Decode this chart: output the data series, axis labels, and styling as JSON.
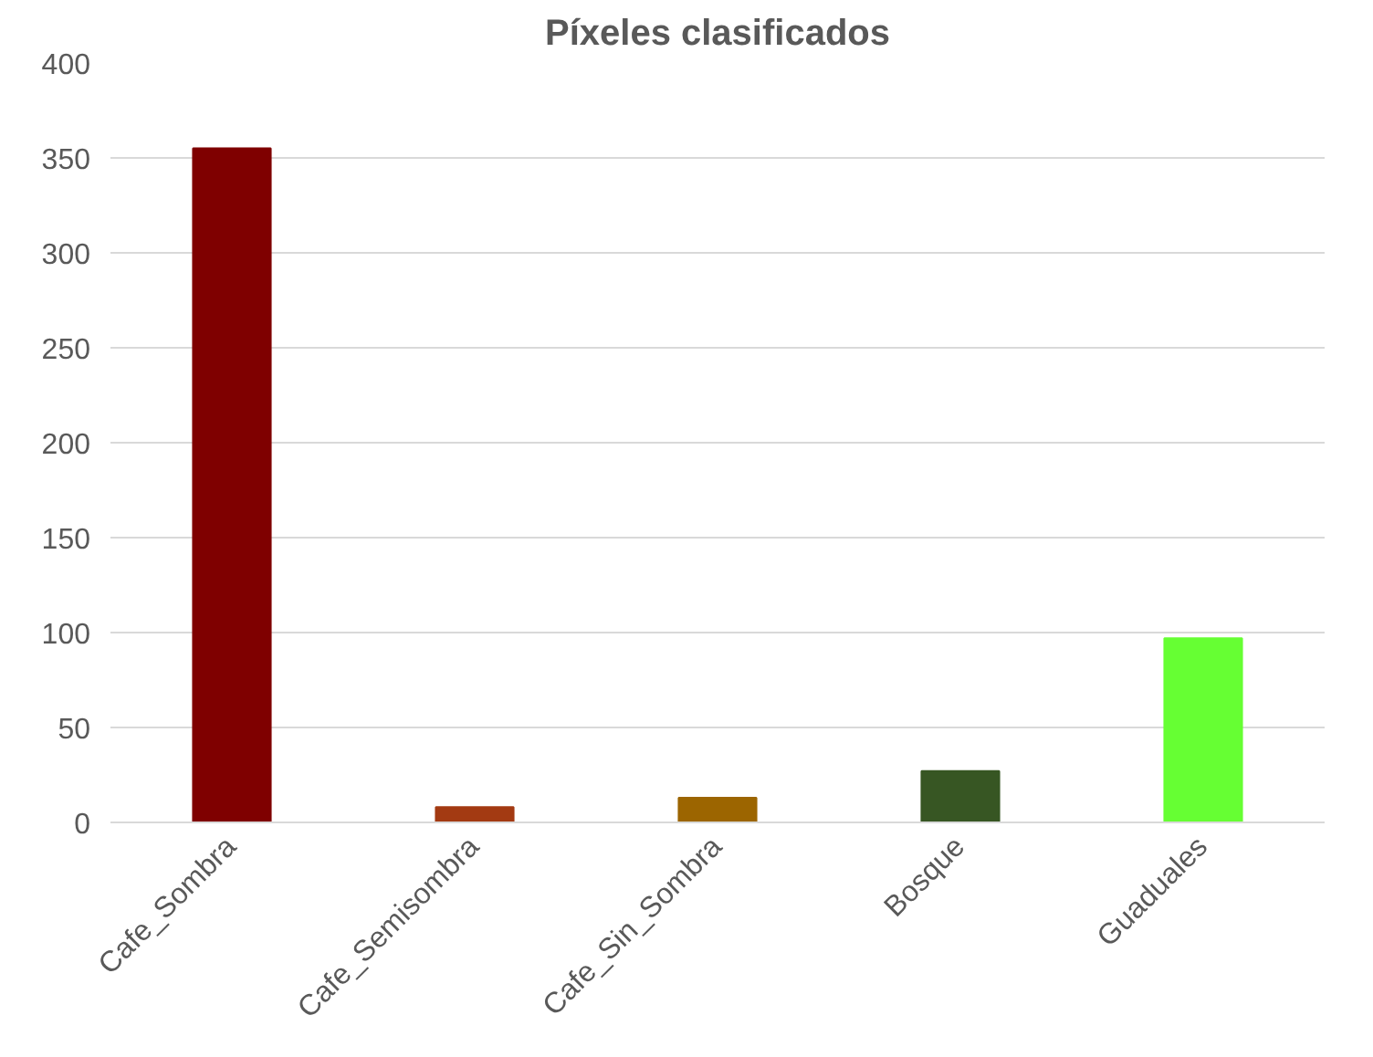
{
  "chart_data": {
    "type": "bar",
    "title": "Píxeles clasificados",
    "categories": [
      "Cafe_Sombra",
      "Cafe_Semisombra",
      "Cafe_Sin_Sombra",
      "Bosque",
      "Guaduales"
    ],
    "values": [
      355,
      8,
      13,
      27,
      97
    ],
    "colors": [
      "#7f0000",
      "#a33a12",
      "#9c6500",
      "#375623",
      "#66ff33"
    ],
    "ylim": [
      0,
      400
    ],
    "yticks": [
      0,
      50,
      100,
      150,
      200,
      250,
      300,
      350,
      400
    ],
    "grid": "y"
  }
}
